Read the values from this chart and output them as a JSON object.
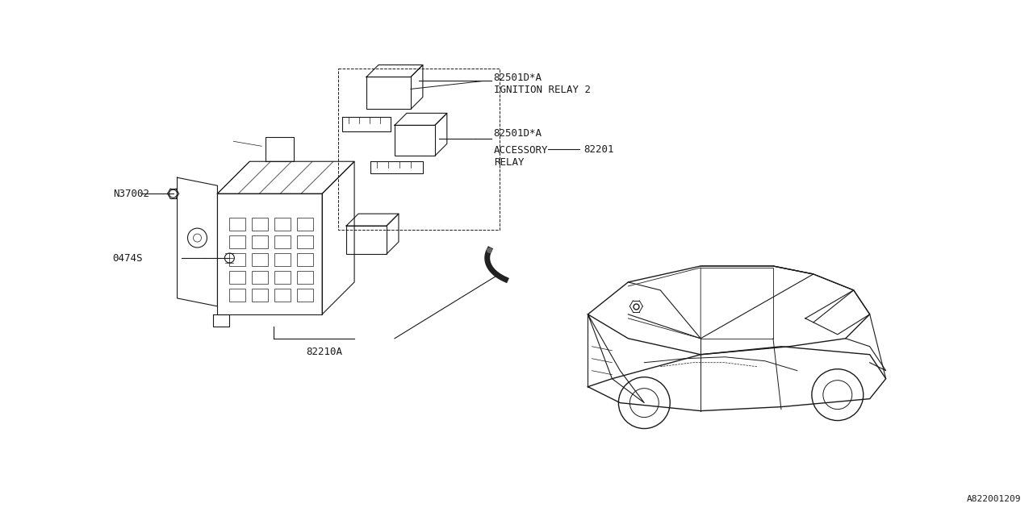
{
  "bg_color": "#ffffff",
  "line_color": "#1a1a1a",
  "diagram_title": "",
  "part_number": "A822001209",
  "labels": {
    "ignition_relay_2": "82501D*A\nIGNITION RELAY 2",
    "accessory_relay_code": "82501D*A",
    "accessory_relay": "ACCESSORY\nRELAY",
    "fuse_box": "82210A",
    "n37002": "N37002",
    "bolt": "0474S",
    "relay_number": "82201"
  },
  "font_size": 9,
  "font_family": "monospace"
}
